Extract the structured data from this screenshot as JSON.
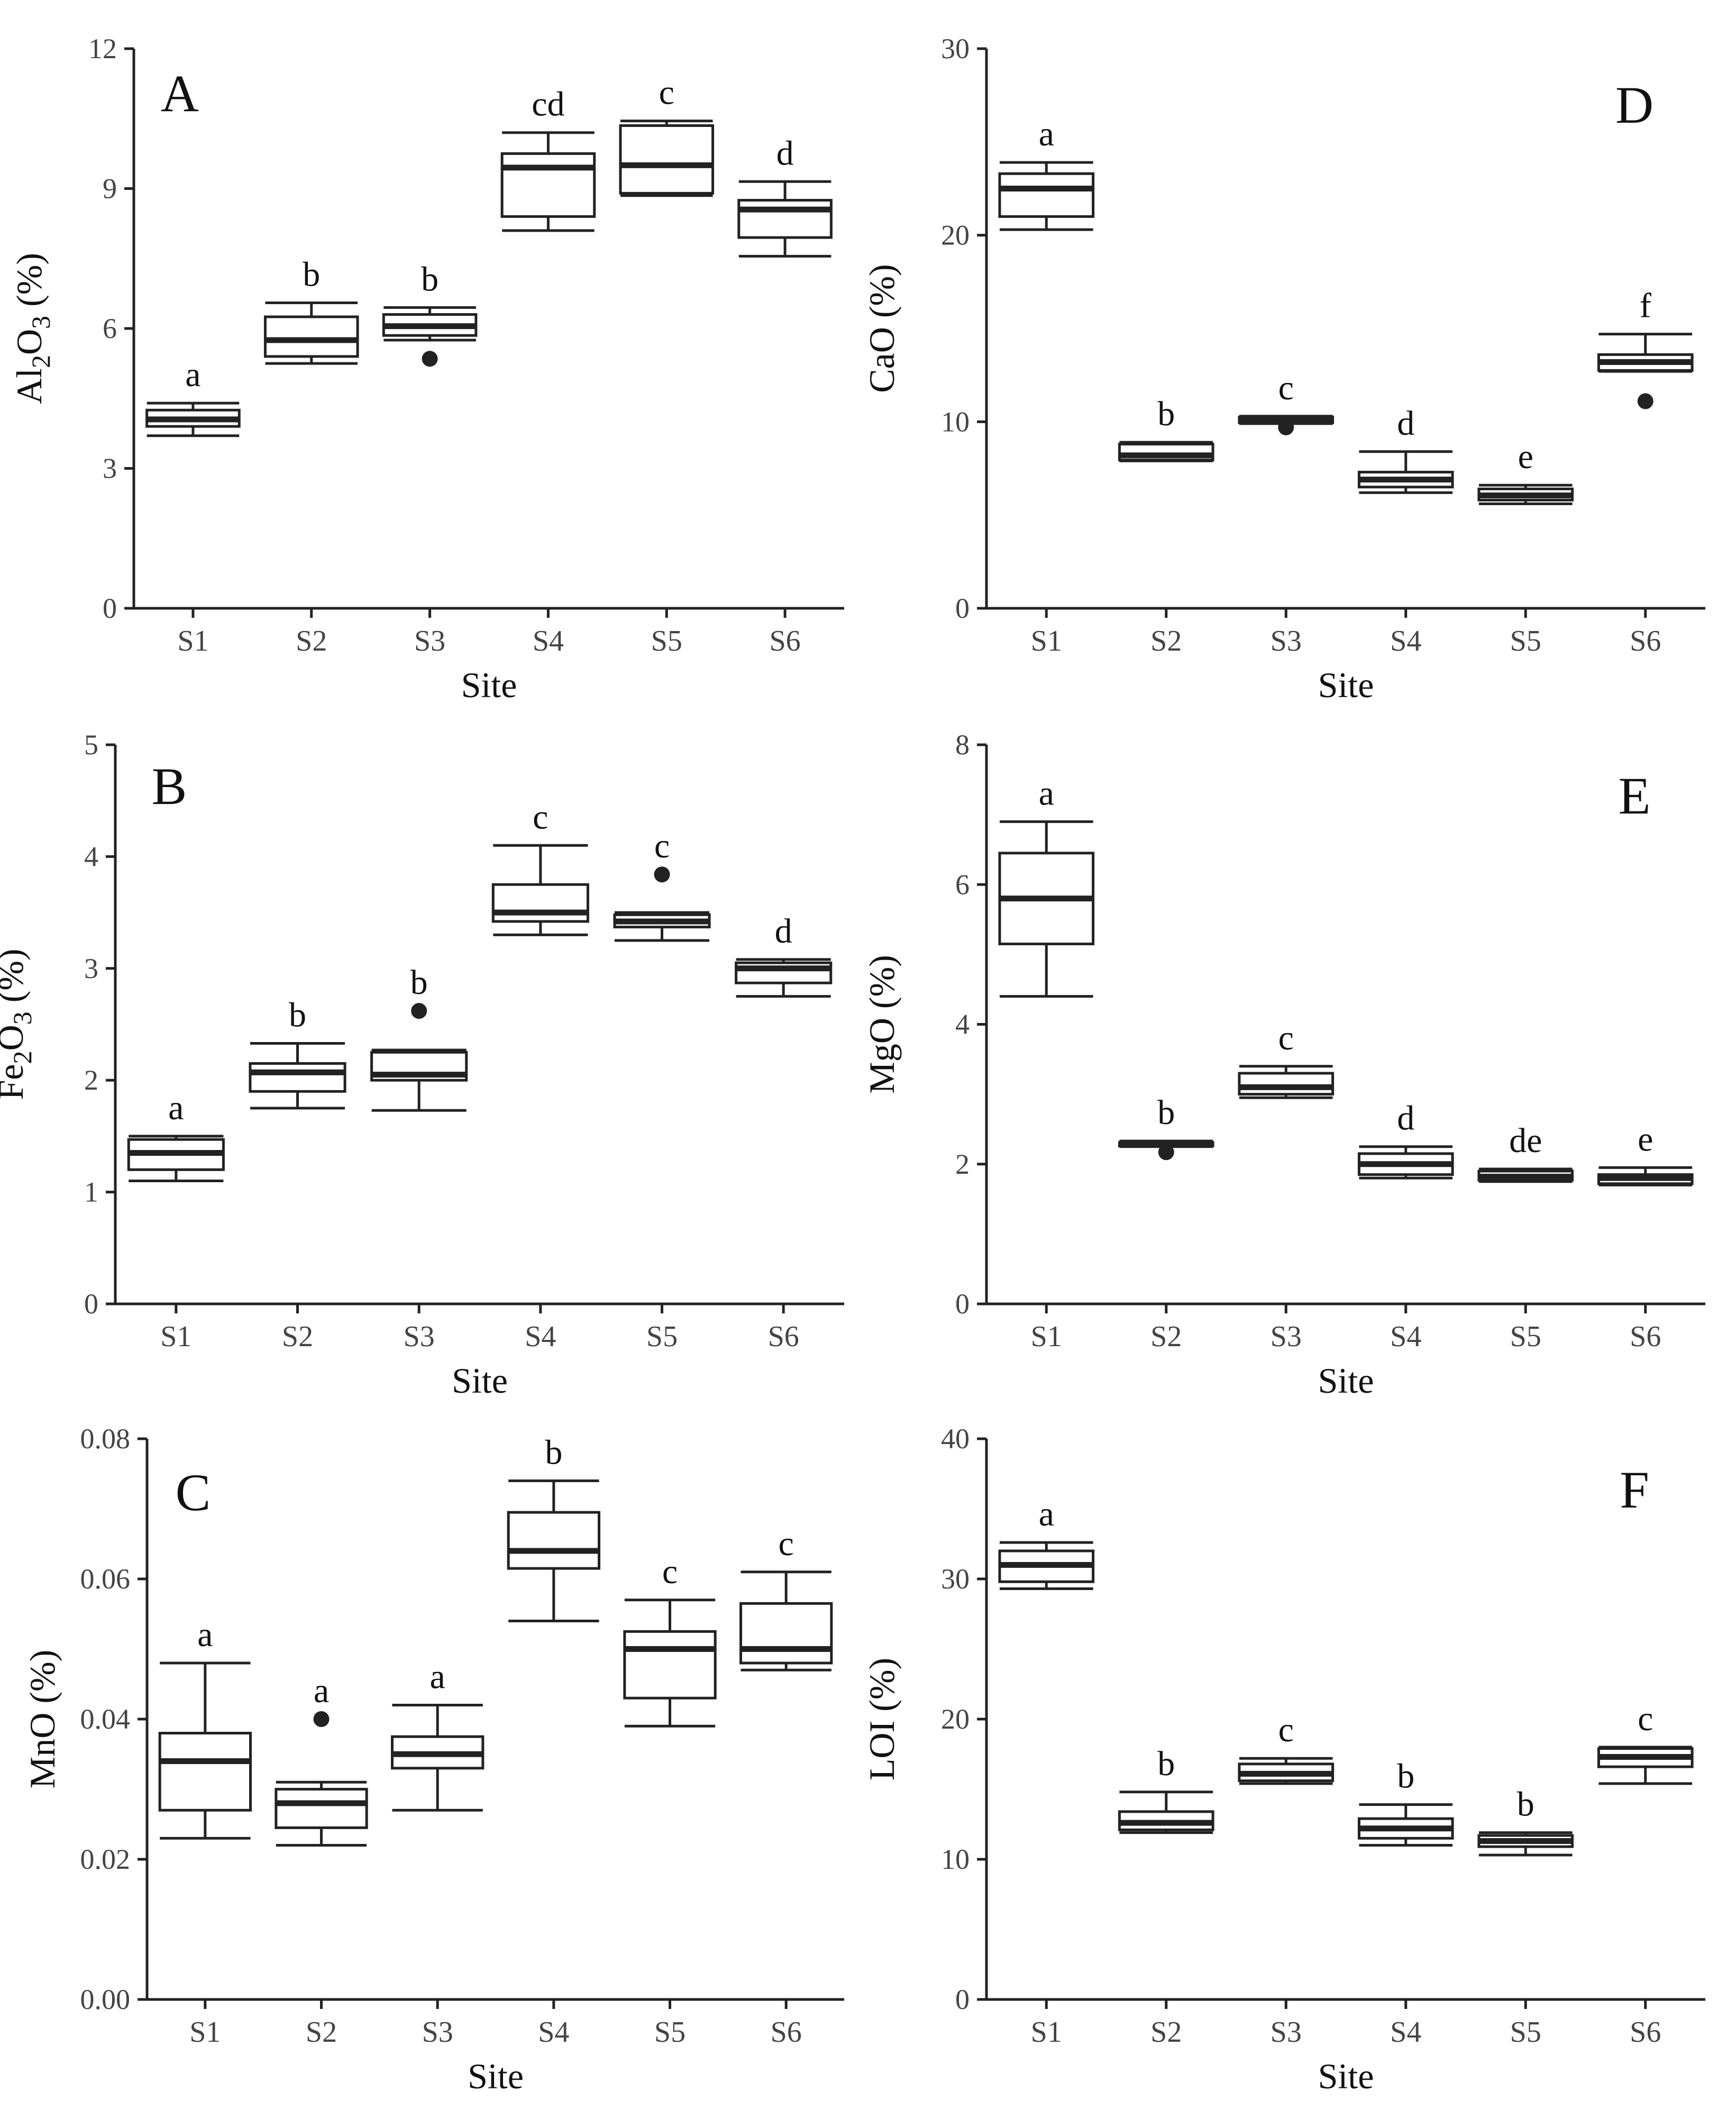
{
  "chart_data": [
    {
      "type": "box",
      "panel": "A",
      "ylabel_main": "Al",
      "ylabel_sub1": "2",
      "ylabel_mid": "O",
      "ylabel_sub2": "3",
      "ylabel_end": " (%)",
      "xlabel": "Site",
      "ylim": [
        0,
        12
      ],
      "yticks": [
        "0",
        "3",
        "6",
        "9",
        "12"
      ],
      "yticks_values": [
        0,
        3,
        6,
        9,
        12
      ],
      "categories": [
        "S1",
        "S2",
        "S3",
        "S4",
        "S5",
        "S6"
      ],
      "boxes": [
        {
          "min": 3.7,
          "q1": 3.9,
          "median": 4.05,
          "q3": 4.25,
          "max": 4.4,
          "outliers": []
        },
        {
          "min": 5.25,
          "q1": 5.4,
          "median": 5.75,
          "q3": 6.25,
          "max": 6.55,
          "outliers": []
        },
        {
          "min": 5.75,
          "q1": 5.85,
          "median": 6.05,
          "q3": 6.3,
          "max": 6.45,
          "outliers": [
            5.35
          ]
        },
        {
          "min": 8.1,
          "q1": 8.4,
          "median": 9.45,
          "q3": 9.75,
          "max": 10.2,
          "outliers": []
        },
        {
          "min": 8.85,
          "q1": 8.9,
          "median": 9.5,
          "q3": 10.35,
          "max": 10.45,
          "outliers": []
        },
        {
          "min": 7.55,
          "q1": 7.95,
          "median": 8.55,
          "q3": 8.75,
          "max": 9.15,
          "outliers": []
        }
      ],
      "group_letters": [
        "a",
        "b",
        "b",
        "cd",
        "c",
        "d"
      ]
    },
    {
      "type": "box",
      "panel": "B",
      "ylabel_main": "Fe",
      "ylabel_sub1": "2",
      "ylabel_mid": "O",
      "ylabel_sub2": "3",
      "ylabel_end": " (%)",
      "xlabel": "Site",
      "ylim": [
        0,
        5
      ],
      "yticks": [
        "0",
        "1",
        "2",
        "3",
        "4",
        "5"
      ],
      "yticks_values": [
        0,
        1,
        2,
        3,
        4,
        5
      ],
      "categories": [
        "S1",
        "S2",
        "S3",
        "S4",
        "S5",
        "S6"
      ],
      "boxes": [
        {
          "min": 1.1,
          "q1": 1.2,
          "median": 1.35,
          "q3": 1.47,
          "max": 1.5,
          "outliers": []
        },
        {
          "min": 1.75,
          "q1": 1.9,
          "median": 2.07,
          "q3": 2.15,
          "max": 2.33,
          "outliers": []
        },
        {
          "min": 1.73,
          "q1": 2.0,
          "median": 2.05,
          "q3": 2.25,
          "max": 2.27,
          "outliers": [
            2.62
          ]
        },
        {
          "min": 3.3,
          "q1": 3.42,
          "median": 3.5,
          "q3": 3.75,
          "max": 4.1,
          "outliers": []
        },
        {
          "min": 3.25,
          "q1": 3.37,
          "median": 3.42,
          "q3": 3.48,
          "max": 3.5,
          "outliers": [
            3.84
          ]
        },
        {
          "min": 2.75,
          "q1": 2.87,
          "median": 3.0,
          "q3": 3.05,
          "max": 3.08,
          "outliers": []
        }
      ],
      "group_letters": [
        "a",
        "b",
        "b",
        "c",
        "c",
        "d"
      ]
    },
    {
      "type": "box",
      "panel": "C",
      "ylabel_main": "MnO",
      "ylabel_sub1": "",
      "ylabel_mid": "",
      "ylabel_sub2": "",
      "ylabel_end": " (%)",
      "xlabel": "Site",
      "ylim": [
        0,
        0.08
      ],
      "yticks": [
        "0.00",
        "0.02",
        "0.04",
        "0.06",
        "0.08"
      ],
      "yticks_values": [
        0,
        0.02,
        0.04,
        0.06,
        0.08
      ],
      "categories": [
        "S1",
        "S2",
        "S3",
        "S4",
        "S5",
        "S6"
      ],
      "boxes": [
        {
          "min": 0.023,
          "q1": 0.027,
          "median": 0.034,
          "q3": 0.038,
          "max": 0.048,
          "outliers": []
        },
        {
          "min": 0.022,
          "q1": 0.0245,
          "median": 0.028,
          "q3": 0.03,
          "max": 0.031,
          "outliers": [
            0.04
          ]
        },
        {
          "min": 0.027,
          "q1": 0.033,
          "median": 0.035,
          "q3": 0.0375,
          "max": 0.042,
          "outliers": []
        },
        {
          "min": 0.054,
          "q1": 0.0615,
          "median": 0.064,
          "q3": 0.0695,
          "max": 0.074,
          "outliers": []
        },
        {
          "min": 0.039,
          "q1": 0.043,
          "median": 0.05,
          "q3": 0.0525,
          "max": 0.057,
          "outliers": []
        },
        {
          "min": 0.047,
          "q1": 0.048,
          "median": 0.05,
          "q3": 0.0565,
          "max": 0.061,
          "outliers": []
        }
      ],
      "group_letters": [
        "a",
        "a",
        "a",
        "b",
        "c",
        "c"
      ]
    },
    {
      "type": "box",
      "panel": "D",
      "ylabel_main": "CaO",
      "ylabel_sub1": "",
      "ylabel_mid": "",
      "ylabel_sub2": "",
      "ylabel_end": " (%)",
      "xlabel": "Site",
      "ylim": [
        0,
        30
      ],
      "yticks": [
        "0",
        "10",
        "20",
        "30"
      ],
      "yticks_values": [
        0,
        10,
        20,
        30
      ],
      "categories": [
        "S1",
        "S2",
        "S3",
        "S4",
        "S5",
        "S6"
      ],
      "boxes": [
        {
          "min": 20.3,
          "q1": 21.0,
          "median": 22.5,
          "q3": 23.3,
          "max": 23.9,
          "outliers": []
        },
        {
          "min": 7.9,
          "q1": 7.95,
          "median": 8.2,
          "q3": 8.8,
          "max": 8.9,
          "outliers": []
        },
        {
          "min": 9.9,
          "q1": 9.95,
          "median": 10.1,
          "q3": 10.25,
          "max": 10.3,
          "outliers": [
            9.7
          ]
        },
        {
          "min": 6.2,
          "q1": 6.5,
          "median": 6.9,
          "q3": 7.3,
          "max": 8.4,
          "outliers": []
        },
        {
          "min": 5.6,
          "q1": 5.8,
          "median": 6.05,
          "q3": 6.4,
          "max": 6.6,
          "outliers": []
        },
        {
          "min": 12.7,
          "q1": 12.75,
          "median": 13.2,
          "q3": 13.6,
          "max": 14.7,
          "outliers": [
            11.1
          ]
        }
      ],
      "group_letters": [
        "a",
        "b",
        "c",
        "d",
        "e",
        "f"
      ]
    },
    {
      "type": "box",
      "panel": "E",
      "ylabel_main": "MgO",
      "ylabel_sub1": "",
      "ylabel_mid": "",
      "ylabel_sub2": "",
      "ylabel_end": " (%)",
      "xlabel": "Site",
      "ylim": [
        0,
        8
      ],
      "yticks": [
        "0",
        "2",
        "4",
        "6",
        "8"
      ],
      "yticks_values": [
        0,
        2,
        4,
        6,
        8
      ],
      "categories": [
        "S1",
        "S2",
        "S3",
        "S4",
        "S5",
        "S6"
      ],
      "boxes": [
        {
          "min": 4.4,
          "q1": 5.15,
          "median": 5.8,
          "q3": 6.45,
          "max": 6.9,
          "outliers": []
        },
        {
          "min": 2.25,
          "q1": 2.26,
          "median": 2.29,
          "q3": 2.31,
          "max": 2.33,
          "outliers": [
            2.17
          ]
        },
        {
          "min": 2.95,
          "q1": 3.0,
          "median": 3.1,
          "q3": 3.3,
          "max": 3.4,
          "outliers": []
        },
        {
          "min": 1.8,
          "q1": 1.85,
          "median": 2.0,
          "q3": 2.15,
          "max": 2.25,
          "outliers": []
        },
        {
          "min": 1.75,
          "q1": 1.77,
          "median": 1.82,
          "q3": 1.9,
          "max": 1.93,
          "outliers": []
        },
        {
          "min": 1.7,
          "q1": 1.72,
          "median": 1.8,
          "q3": 1.85,
          "max": 1.95,
          "outliers": []
        }
      ],
      "group_letters": [
        "a",
        "b",
        "c",
        "d",
        "de",
        "e"
      ]
    },
    {
      "type": "box",
      "panel": "F",
      "ylabel_main": "LOI",
      "ylabel_sub1": "",
      "ylabel_mid": "",
      "ylabel_sub2": "",
      "ylabel_end": " (%)",
      "xlabel": "Site",
      "ylim": [
        0,
        40
      ],
      "yticks": [
        "0",
        "10",
        "20",
        "30",
        "40"
      ],
      "yticks_values": [
        0,
        10,
        20,
        30,
        40
      ],
      "categories": [
        "S1",
        "S2",
        "S3",
        "S4",
        "S5",
        "S6"
      ],
      "boxes": [
        {
          "min": 29.3,
          "q1": 29.8,
          "median": 31.0,
          "q3": 32.0,
          "max": 32.6,
          "outliers": []
        },
        {
          "min": 11.9,
          "q1": 12.1,
          "median": 12.6,
          "q3": 13.4,
          "max": 14.8,
          "outliers": []
        },
        {
          "min": 15.4,
          "q1": 15.6,
          "median": 16.1,
          "q3": 16.8,
          "max": 17.2,
          "outliers": []
        },
        {
          "min": 11.0,
          "q1": 11.5,
          "median": 12.2,
          "q3": 12.9,
          "max": 13.9,
          "outliers": []
        },
        {
          "min": 10.3,
          "q1": 10.9,
          "median": 11.3,
          "q3": 11.7,
          "max": 11.9,
          "outliers": []
        },
        {
          "min": 15.4,
          "q1": 16.6,
          "median": 17.3,
          "q3": 17.9,
          "max": 18.0,
          "outliers": []
        }
      ],
      "group_letters": [
        "a",
        "b",
        "c",
        "b",
        "b",
        "c"
      ]
    }
  ]
}
